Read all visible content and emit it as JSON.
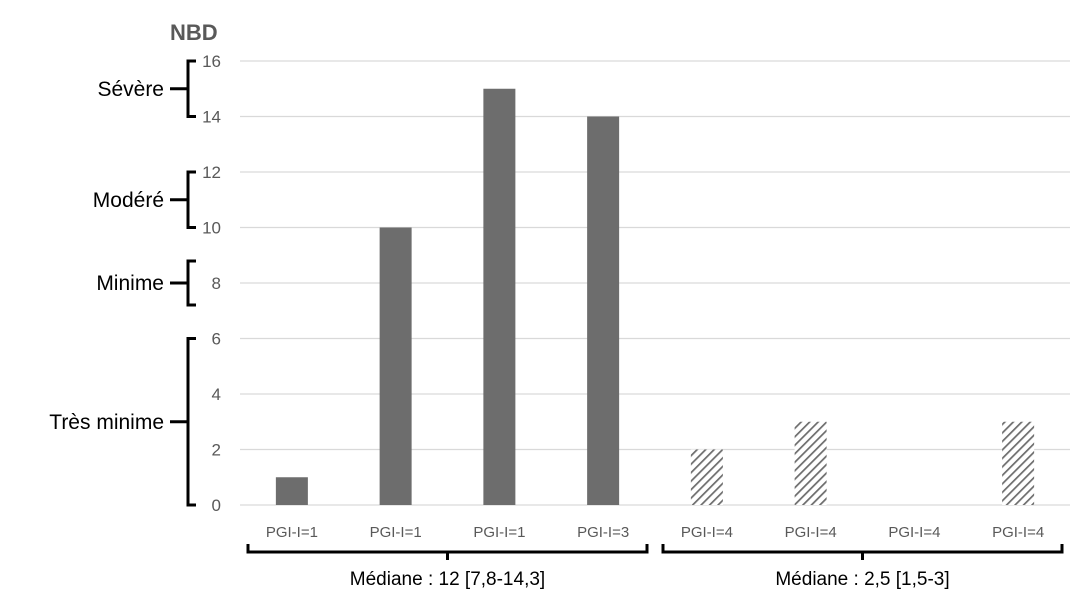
{
  "chart_data": {
    "type": "bar",
    "title": "",
    "ylabel": "NBD",
    "xlabel": "",
    "ylim": [
      0,
      16
    ],
    "yticks": [
      0,
      2,
      4,
      6,
      8,
      10,
      12,
      14,
      16
    ],
    "grid": true,
    "categories": [
      "PGI-I=1",
      "PGI-I=1",
      "PGI-I=1",
      "PGI-I=3",
      "PGI-I=4",
      "PGI-I=4",
      "PGI-I=4",
      "PGI-I=4"
    ],
    "values": [
      1,
      10,
      15,
      14,
      2,
      3,
      0,
      3
    ],
    "bar_fills": [
      "solid",
      "solid",
      "solid",
      "solid",
      "hatched",
      "hatched",
      "hatched",
      "hatched"
    ],
    "severity_bands": [
      {
        "label": "Sévère",
        "from": 14,
        "to": 16
      },
      {
        "label": "Modéré",
        "from": 10,
        "to": 12
      },
      {
        "label": "Minime",
        "from": 8,
        "to": 8
      },
      {
        "label": "Très minime",
        "from": 0,
        "to": 6
      }
    ],
    "groups": [
      {
        "label": "Médiane : 12 [7,8-14,3]",
        "start": 0,
        "end": 3
      },
      {
        "label": "Médiane : 2,5 [1,5-3]",
        "start": 4,
        "end": 7
      }
    ],
    "colors": {
      "bar": "#6d6d6d",
      "grid": "#d9d9d9",
      "text": "#595959",
      "bracket": "#000000"
    }
  }
}
